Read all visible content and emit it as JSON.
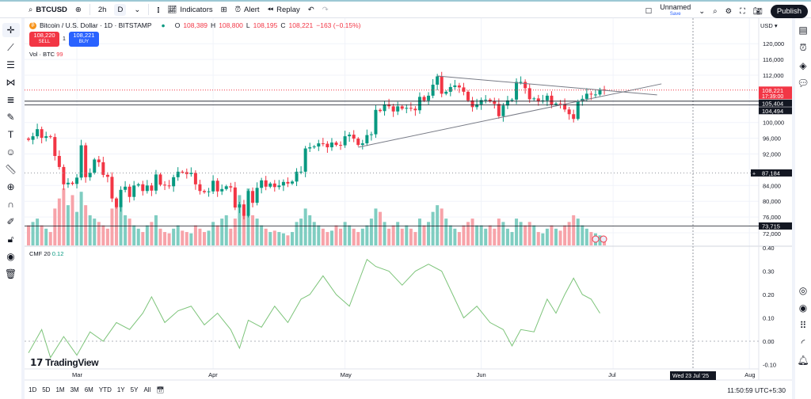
{
  "toolbar": {
    "symbol": "BTCUSD",
    "interval_1": "2h",
    "interval_2": "D",
    "indicators": "Indicators",
    "alert": "Alert",
    "replay": "Replay",
    "layout_name": "Unnamed",
    "save": "Save",
    "publish": "Publish"
  },
  "legend": {
    "title": "Bitcoin / U.S. Dollar · 1D · BITSTAMP",
    "o_label": "O",
    "o": "108,389",
    "h_label": "H",
    "h": "108,800",
    "l_label": "L",
    "l": "108,195",
    "c_label": "C",
    "c": "108,221",
    "change": "−163 (−0.15%)",
    "sell_price": "108,220",
    "sell": "SELL",
    "spread": "1",
    "buy_price": "108,221",
    "buy": "BUY",
    "vol_label": "Vol · BTC",
    "vol_value": "99",
    "cmf_label": "CMF 20",
    "cmf_value": "0.12"
  },
  "currency": "USD",
  "brand": "TradingView",
  "ranges": [
    "1D",
    "5D",
    "1M",
    "3M",
    "6M",
    "YTD",
    "1Y",
    "5Y",
    "All"
  ],
  "clock": "11:50:59 UTC+5:30",
  "crosshair_date": "Wed 23 Jul '25",
  "colors": {
    "up": "#089981",
    "down": "#f23645",
    "up_vol": "#7fcdc1",
    "down_vol": "#f7a3a9",
    "cmf": "#7dc47a"
  },
  "chart_data": {
    "type": "candlestick",
    "start_date": "2025-02-18",
    "closes_k": [
      95.6,
      96.5,
      98.3,
      96.1,
      96.5,
      96.3,
      91.5,
      88.7,
      84.3,
      84.7,
      84.4,
      86.0,
      94.2,
      86.1,
      87.2,
      90.6,
      89.9,
      86.7,
      86.2,
      80.7,
      78.5,
      82.9,
      83.7,
      81.1,
      84.0,
      84.3,
      82.6,
      84.0,
      82.7,
      86.8,
      84.2,
      84.0,
      83.8,
      86.1,
      87.5,
      87.4,
      86.9,
      87.2,
      84.3,
      82.6,
      82.3,
      82.5,
      85.2,
      82.5,
      83.1,
      83.8,
      83.5,
      78.4,
      79.2,
      76.3,
      82.6,
      79.6,
      83.4,
      85.3,
      83.7,
      84.5,
      83.6,
      84.0,
      84.9,
      84.5,
      85.0,
      87.5,
      87.5,
      93.4,
      93.7,
      93.9,
      94.7,
      94.6,
      93.7,
      94.9,
      94.3,
      94.2,
      96.5,
      96.9,
      95.9,
      94.3,
      94.7,
      96.8,
      97.0,
      103.2,
      102.9,
      104.6,
      104.1,
      102.8,
      104.1,
      103.5,
      103.7,
      103.5,
      103.1,
      106.5,
      105.6,
      106.8,
      109.6,
      111.7,
      107.3,
      107.8,
      109.0,
      109.4,
      108.9,
      107.8,
      105.6,
      103.9,
      104.6,
      105.7,
      105.8,
      105.4,
      104.7,
      101.6,
      104.3,
      105.6,
      105.8,
      110.3,
      110.3,
      108.7,
      105.9,
      106.1,
      105.4,
      105.6,
      106.8,
      104.5,
      104.8,
      104.7,
      103.3,
      102.1,
      100.9,
      105.4,
      106.0,
      107.3,
      107.1,
      107.1,
      108.4,
      108.2
    ],
    "volumes": [
      30,
      35,
      40,
      30,
      25,
      20,
      55,
      70,
      85,
      60,
      75,
      50,
      80,
      60,
      45,
      40,
      35,
      30,
      25,
      55,
      70,
      60,
      45,
      40,
      30,
      25,
      20,
      30,
      35,
      45,
      25,
      20,
      18,
      25,
      30,
      22,
      20,
      18,
      30,
      25,
      20,
      22,
      35,
      30,
      40,
      45,
      25,
      40,
      75,
      55,
      85,
      45,
      40,
      30,
      25,
      20,
      22,
      20,
      18,
      15,
      20,
      35,
      40,
      55,
      45,
      35,
      30,
      25,
      20,
      22,
      30,
      25,
      35,
      30,
      25,
      20,
      25,
      30,
      40,
      55,
      50,
      35,
      25,
      30,
      35,
      25,
      30,
      25,
      20,
      40,
      30,
      35,
      50,
      60,
      55,
      40,
      30,
      25,
      20,
      30,
      35,
      40,
      30,
      30,
      25,
      30,
      25,
      40,
      35,
      25,
      20,
      40,
      35,
      30,
      35,
      30,
      20,
      18,
      25,
      30,
      25,
      22,
      30,
      35,
      45,
      40,
      30,
      25,
      20,
      18,
      15,
      12
    ],
    "cmf_points": [
      [
        0,
        -0.05
      ],
      [
        3,
        0.05
      ],
      [
        5,
        -0.07
      ],
      [
        8,
        0.02
      ],
      [
        11,
        -0.06
      ],
      [
        14,
        0.04
      ],
      [
        17,
        0.0
      ],
      [
        20,
        0.08
      ],
      [
        23,
        0.05
      ],
      [
        26,
        0.12
      ],
      [
        28,
        0.19
      ],
      [
        31,
        0.08
      ],
      [
        34,
        0.13
      ],
      [
        37,
        0.15
      ],
      [
        40,
        0.07
      ],
      [
        43,
        0.12
      ],
      [
        46,
        0.05
      ],
      [
        48,
        -0.03
      ],
      [
        50,
        0.09
      ],
      [
        53,
        0.06
      ],
      [
        56,
        0.15
      ],
      [
        59,
        0.08
      ],
      [
        62,
        0.18
      ],
      [
        64,
        0.2
      ],
      [
        67,
        0.28
      ],
      [
        70,
        0.2
      ],
      [
        73,
        0.15
      ],
      [
        75,
        0.25
      ],
      [
        77,
        0.35
      ],
      [
        79,
        0.32
      ],
      [
        82,
        0.3
      ],
      [
        85,
        0.24
      ],
      [
        88,
        0.3
      ],
      [
        91,
        0.33
      ],
      [
        94,
        0.3
      ],
      [
        97,
        0.18
      ],
      [
        99,
        0.1
      ],
      [
        102,
        0.15
      ],
      [
        105,
        0.08
      ],
      [
        108,
        0.05
      ],
      [
        110,
        -0.02
      ],
      [
        112,
        0.05
      ],
      [
        115,
        0.04
      ],
      [
        118,
        0.18
      ],
      [
        120,
        0.12
      ],
      [
        122,
        0.2
      ],
      [
        124,
        0.27
      ],
      [
        126,
        0.2
      ],
      [
        128,
        0.18
      ],
      [
        130,
        0.12
      ]
    ],
    "price_ticks": [
      "120,000",
      "116,000",
      "112,000",
      "100,000",
      "96,000",
      "92,000",
      "84,000",
      "80,000",
      "76,000",
      "72,000"
    ],
    "price_tick_values": [
      120000,
      116000,
      112000,
      100000,
      96000,
      92000,
      84000,
      80000,
      76000,
      72000
    ],
    "cmf_ticks": [
      "0.40",
      "0.30",
      "0.20",
      "0.10",
      "0.00",
      "-0.10"
    ],
    "cmf_tick_values": [
      0.4,
      0.3,
      0.2,
      0.1,
      0,
      -0.1
    ],
    "month_labels": [
      "Mar",
      "Apr",
      "May",
      "Jun",
      "Jul",
      "Aug"
    ],
    "month_days": [
      11,
      42,
      72,
      103,
      133,
      164
    ],
    "price_labels": [
      {
        "text": "108,221",
        "sub": "17:39:00",
        "value": 108221,
        "color": "#f23645"
      },
      {
        "text": "105,404",
        "value": 105404,
        "color": "#131722"
      },
      {
        "text": "104,494",
        "value": 104494,
        "color": "#131722"
      },
      {
        "text": "87,184",
        "value": 87184,
        "color": "#131722"
      },
      {
        "text": "73,715",
        "value": 73715,
        "color": "#131722"
      }
    ],
    "hlines": [
      105404,
      104494,
      73715
    ],
    "trendlines": [
      [
        [
          93,
          111800
        ],
        [
          143,
          107000
        ]
      ],
      [
        [
          75,
          93700
        ],
        [
          144,
          109800
        ]
      ]
    ]
  }
}
